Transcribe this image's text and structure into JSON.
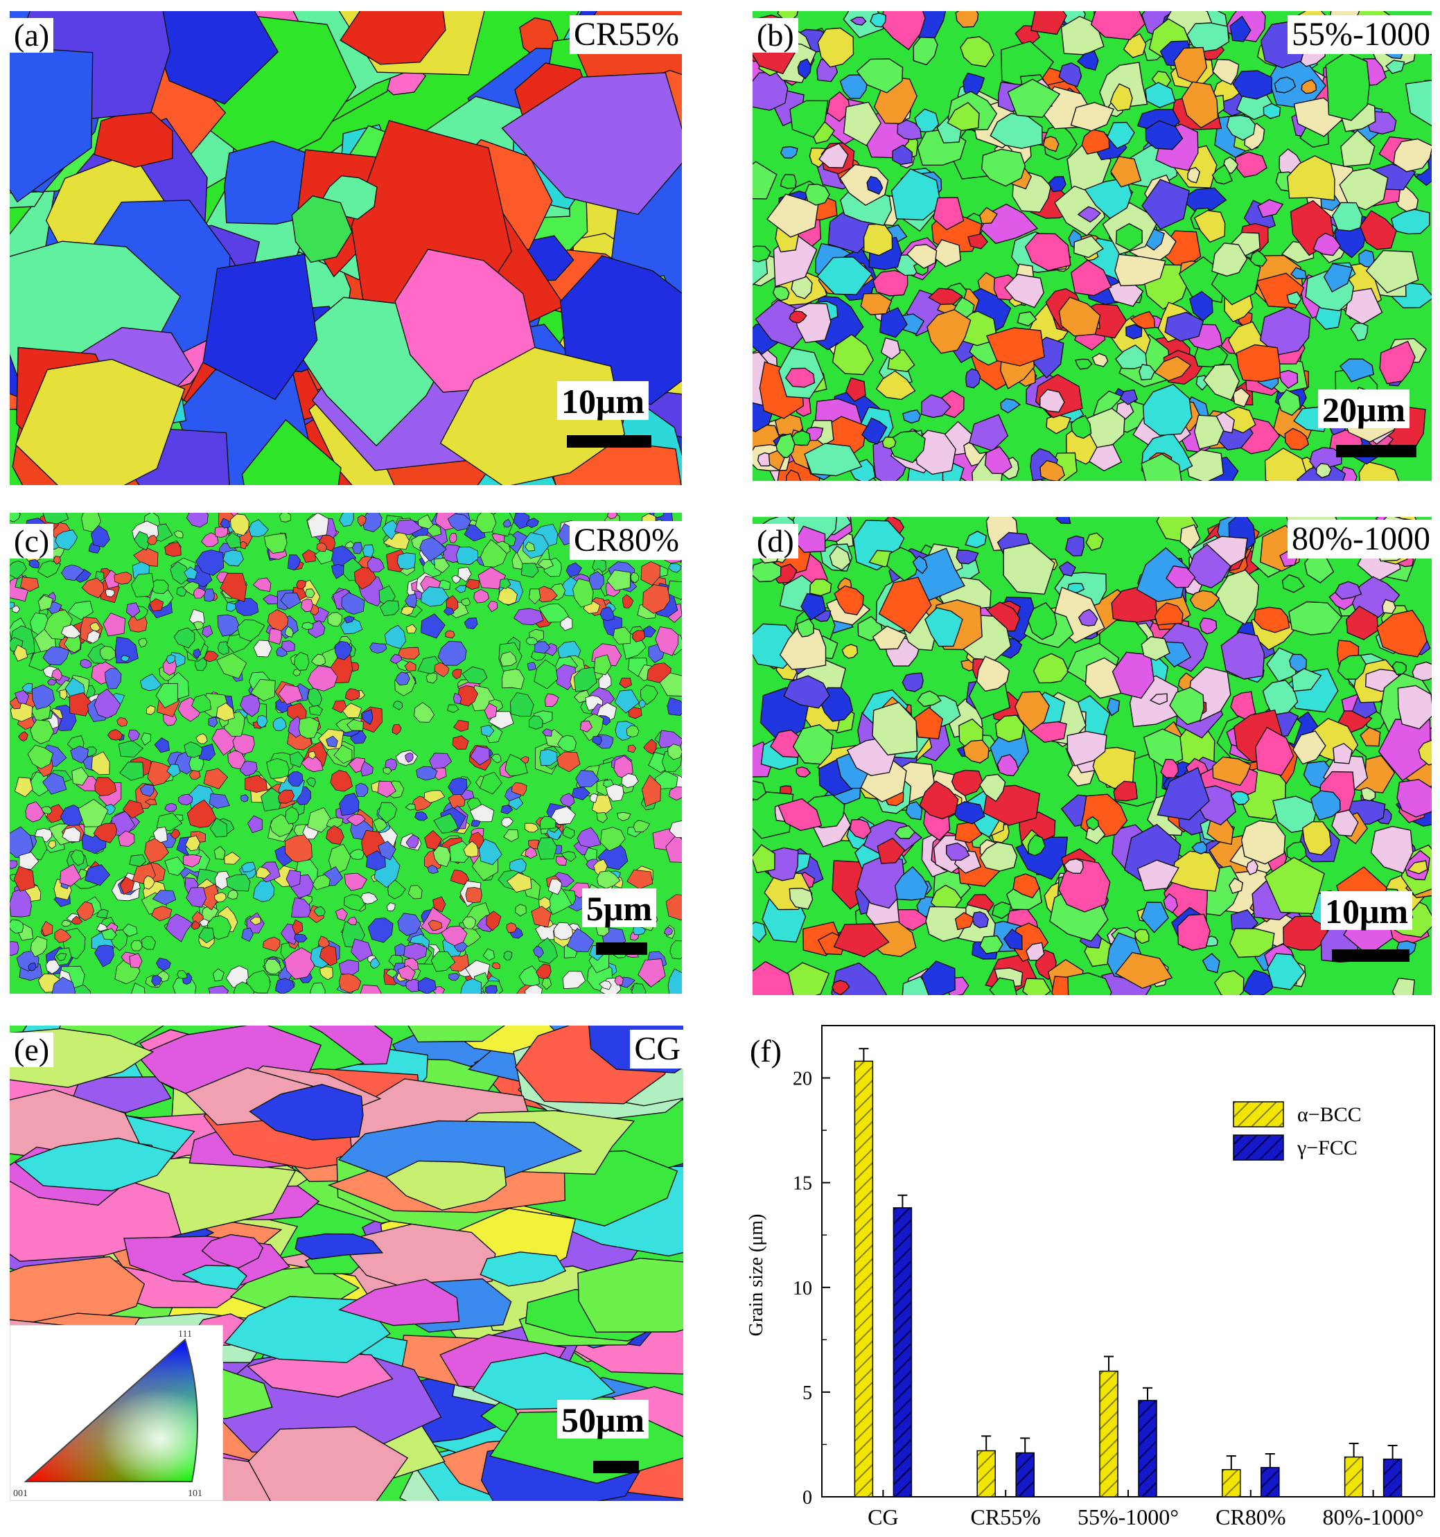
{
  "panels": [
    {
      "id": "a",
      "label": "(a)",
      "condition": "CR55%",
      "scale": "10μm",
      "palette": "green-red-blue-deformed"
    },
    {
      "id": "b",
      "label": "(b)",
      "condition": "55%-1000",
      "scale": "20μm",
      "palette": "mixed-recrystallized"
    },
    {
      "id": "c",
      "label": "(c)",
      "condition": "CR80%",
      "scale": "5μm",
      "palette": "green-fine"
    },
    {
      "id": "d",
      "label": "(d)",
      "condition": "80%-1000",
      "scale": "10μm",
      "palette": "mixed-recrystallized"
    },
    {
      "id": "e",
      "label": "(e)",
      "condition": "CG",
      "scale": "50μm",
      "palette": "coarse-elongated"
    }
  ],
  "ipf_key": {
    "corners": [
      "001",
      "101",
      "111"
    ],
    "colors": [
      "#ff0000",
      "#00ff00",
      "#0000ff"
    ]
  },
  "chart_panel": {
    "label": "(f)"
  },
  "chart_data": {
    "type": "bar",
    "categories": [
      "CG",
      "CR55%",
      "55%-1000°",
      "CR80%",
      "80%-1000°"
    ],
    "series": [
      {
        "name": "α−BCC",
        "values": [
          20.8,
          2.2,
          6.0,
          1.3,
          1.9
        ],
        "errors": [
          0.6,
          0.7,
          0.7,
          0.65,
          0.65
        ],
        "color": "#f2e600",
        "hatch": "#8a8200"
      },
      {
        "name": "γ−FCC",
        "values": [
          13.8,
          2.1,
          4.6,
          1.4,
          1.8
        ],
        "errors": [
          0.6,
          0.7,
          0.6,
          0.65,
          0.65
        ],
        "color": "#1418c8",
        "hatch": "#000050"
      }
    ],
    "xlabel": "",
    "ylabel": "Grain size (μm)",
    "ylim": [
      0,
      22.5
    ],
    "yticks": [
      0,
      5,
      10,
      15,
      20
    ],
    "grid": false,
    "legend_position": "top-right"
  }
}
